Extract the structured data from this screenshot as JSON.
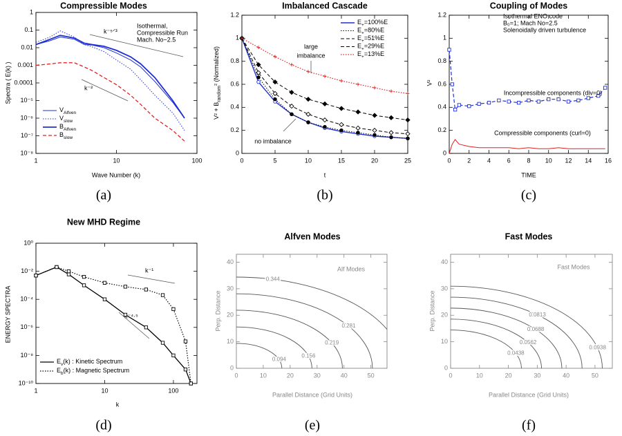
{
  "chart_data": [
    {
      "type": "line",
      "title": "Compressible Modes",
      "panel_label": "(a)",
      "xlabel": "Wave Number (k)",
      "ylabel": "Spectra ( E(k) )",
      "xlog": true,
      "ylog": true,
      "xlim": [
        1,
        100
      ],
      "ylim": [
        1e-08,
        1
      ],
      "xticks": [
        1,
        10,
        100
      ],
      "yticks": [
        1,
        0.1,
        0.01,
        0.001,
        0.0001,
        {
          "value": 1e-05,
          "label": "10⁻⁵"
        },
        {
          "value": 1e-06,
          "label": "10⁻⁶"
        },
        {
          "value": 1e-07,
          "label": "10⁻⁷"
        },
        {
          "value": 1e-08,
          "label": "10⁻⁸"
        }
      ],
      "annotations": [
        "Isothermal,",
        "Compressible Run",
        "Mach. No~2.5",
        "k⁻⁵ᐟ³",
        "k⁻²"
      ],
      "x": [
        1,
        1.5,
        2,
        3,
        4,
        5,
        7,
        10,
        15,
        20,
        30,
        50,
        70
      ],
      "series": [
        {
          "name": "V",
          "subscript": "Alfven",
          "color": "#1f2fd0",
          "dash": "solid",
          "width": 1,
          "values": [
            0.015,
            0.025,
            0.04,
            0.03,
            0.015,
            0.014,
            0.01,
            0.005,
            0.002,
            0.0008,
            0.00012,
            8e-06,
            1e-06
          ]
        },
        {
          "name": "V",
          "subscript": "slow",
          "color": "#1f2fd0",
          "dash": "dotted",
          "width": 1,
          "values": [
            0.02,
            0.04,
            0.09,
            0.04,
            0.015,
            0.011,
            0.006,
            0.002,
            0.0006,
            0.00015,
            2e-05,
            2e-06,
            2e-07
          ]
        },
        {
          "name": "B",
          "subscript": "Alfven",
          "color": "#1f2fd0",
          "dash": "solid",
          "width": 1.8,
          "values": [
            0.015,
            0.03,
            0.05,
            0.035,
            0.018,
            0.015,
            0.012,
            0.007,
            0.003,
            0.0012,
            0.0002,
            1e-05,
            1e-06
          ]
        },
        {
          "name": "B",
          "subscript": "slow",
          "color": "#e02020",
          "dash": "dashed",
          "width": 1.3,
          "values": [
            0.001,
            0.0012,
            0.0014,
            0.0014,
            0.0008,
            0.0005,
            0.0002,
            8e-05,
            2e-05,
            6e-06,
            1e-06,
            2e-07,
            5e-08
          ]
        }
      ]
    },
    {
      "type": "line",
      "title": "Imbalanced Cascade",
      "panel_label": "(b)",
      "xlabel": "t",
      "ylabel": [
        "V² + B",
        "random",
        "² (Normalized)"
      ],
      "xlim": [
        0,
        25
      ],
      "ylim": [
        0,
        1.2
      ],
      "xticks": [
        0,
        5,
        10,
        15,
        20,
        25
      ],
      "yticks": [
        0,
        0.2,
        0.4,
        0.6,
        0.8,
        1,
        1.2
      ],
      "annotations": [
        "large",
        "imbalance",
        "no imbalance"
      ],
      "x": [
        0,
        2.5,
        5,
        7.5,
        10,
        12.5,
        15,
        17.5,
        20,
        22.5,
        25
      ],
      "series": [
        {
          "name": "E",
          "subscript": "+",
          "suffix": "=100%E",
          "color": "#1f2fd0",
          "dash": "solid",
          "width": 1.4,
          "marker": "circle-open",
          "values": [
            1,
            0.62,
            0.45,
            0.34,
            0.27,
            0.22,
            0.19,
            0.17,
            0.15,
            0.14,
            0.13
          ]
        },
        {
          "name": "E",
          "subscript": "+",
          "suffix": "=80%E",
          "color": "#000000",
          "dash": "dotted",
          "width": 1,
          "marker": "circle",
          "values": [
            1,
            0.66,
            0.47,
            0.34,
            0.27,
            0.23,
            0.2,
            0.18,
            0.16,
            0.14,
            0.13
          ]
        },
        {
          "name": "E",
          "subscript": "+",
          "suffix": "=51%E",
          "color": "#000000",
          "dash": "dashed",
          "width": 1,
          "marker": "diamond-open",
          "values": [
            1,
            0.7,
            0.52,
            0.41,
            0.34,
            0.29,
            0.25,
            0.22,
            0.2,
            0.18,
            0.17
          ]
        },
        {
          "name": "E",
          "subscript": "+",
          "suffix": "=29%E",
          "color": "#000000",
          "dash": "dashed",
          "width": 1,
          "marker": "diamond",
          "values": [
            1,
            0.77,
            0.62,
            0.53,
            0.47,
            0.43,
            0.39,
            0.36,
            0.33,
            0.31,
            0.29
          ]
        },
        {
          "name": "E",
          "subscript": "+",
          "suffix": "=13%E",
          "color": "#e02020",
          "dash": "dotted",
          "width": 1.2,
          "marker": "plus",
          "values": [
            1,
            0.92,
            0.84,
            0.77,
            0.71,
            0.67,
            0.63,
            0.6,
            0.57,
            0.54,
            0.52
          ]
        }
      ]
    },
    {
      "type": "line",
      "title": "Coupling of Modes",
      "panel_label": "(c)",
      "xlabel": "TIME",
      "ylabel": "V²",
      "xlim": [
        0,
        16
      ],
      "ylim": [
        0,
        1.2
      ],
      "xticks": [
        0,
        2,
        4,
        6,
        8,
        10,
        12,
        14,
        16
      ],
      "yticks": [
        0,
        0.2,
        0.4,
        0.6,
        0.8,
        1,
        1.2
      ],
      "annotations": [
        "Isothermal ENO code",
        "B₀=1;  Mach No=2.5",
        "Solenoidally driven turbulence"
      ],
      "x": [
        0,
        0.3,
        0.6,
        1,
        2,
        3,
        4,
        5,
        6,
        7,
        8,
        9,
        10,
        11,
        12,
        13,
        14,
        15,
        15.7
      ],
      "series": [
        {
          "name": "Incompressible components (div=0)",
          "color": "#1f2fd0",
          "dash": "dashed",
          "width": 1.2,
          "marker": "square-open",
          "values": [
            0.9,
            0.6,
            0.38,
            0.42,
            0.41,
            0.43,
            0.44,
            0.46,
            0.45,
            0.44,
            0.46,
            0.45,
            0.47,
            0.47,
            0.45,
            0.46,
            0.48,
            0.5,
            0.57
          ]
        },
        {
          "name": "Compressible components (curl=0)",
          "color": "#e02020",
          "dash": "solid",
          "width": 1,
          "values": [
            0,
            0.08,
            0.12,
            0.08,
            0.06,
            0.05,
            0.05,
            0.05,
            0.05,
            0.04,
            0.05,
            0.04,
            0.04,
            0.05,
            0.04,
            0.04,
            0.04,
            0.04,
            0.04
          ]
        }
      ]
    },
    {
      "type": "line",
      "title": "New MHD Regime",
      "panel_label": "(d)",
      "xlabel": "k",
      "ylabel": "ENERGY SPECTRA",
      "xlog": true,
      "ylog": true,
      "xlim": [
        1,
        220
      ],
      "ylim": [
        1e-10,
        1
      ],
      "xticks": [
        1,
        10,
        100
      ],
      "yticks": [
        {
          "value": 1,
          "label": "10⁰"
        },
        {
          "value": 0.01,
          "label": "10⁻²"
        },
        {
          "value": 0.0001,
          "label": "10⁻⁴"
        },
        {
          "value": 1e-06,
          "label": "10⁻⁶"
        },
        {
          "value": 1e-08,
          "label": "10⁻⁸"
        },
        {
          "value": 1e-10,
          "label": "10⁻¹⁰"
        }
      ],
      "annotations": [
        "k⁻¹",
        "k⁻⁴·⁵"
      ],
      "x": [
        1,
        2,
        3,
        5,
        10,
        20,
        40,
        70,
        100,
        150,
        180
      ],
      "series": [
        {
          "name": "E",
          "subscript": "v",
          "suffix": "(k) : Kinetic Spectrum",
          "color": "#000000",
          "dash": "solid",
          "width": 1.3,
          "marker": "square-open",
          "values": [
            0.005,
            0.02,
            0.006,
            0.001,
            0.0001,
            8e-06,
            1e-06,
            8e-08,
            1e-08,
            1e-09,
            1e-10
          ]
        },
        {
          "name": "E",
          "subscript": "b",
          "suffix": "(k) : Magnetic Spectrum",
          "color": "#000000",
          "dash": "dotted",
          "width": 1.2,
          "marker": "square-open",
          "values": [
            0.005,
            0.02,
            0.01,
            0.004,
            0.0015,
            0.0008,
            0.0005,
            0.0002,
            2e-05,
            1e-07,
            1e-10
          ]
        }
      ]
    },
    {
      "type": "contour",
      "title": "Alfven Modes",
      "panel_label": "(e)",
      "xlabel": "Parallel Distance (Grid Units)",
      "ylabel": "Perp. Distance",
      "xlim": [
        0,
        56
      ],
      "ylim": [
        0,
        43
      ],
      "xticks": [
        0,
        10,
        20,
        30,
        40,
        50
      ],
      "yticks": [
        0,
        10,
        20,
        30,
        40
      ],
      "annotations": [
        "Alf Modes"
      ],
      "color": "#555555",
      "levels": [
        0.094,
        0.156,
        0.219,
        0.281,
        0.344
      ]
    },
    {
      "type": "contour",
      "title": "Fast Modes",
      "panel_label": "(f)",
      "xlabel": "Parallel Distance (Grid Units)",
      "ylabel": "Perp. Distance",
      "xlim": [
        0,
        56
      ],
      "ylim": [
        0,
        43
      ],
      "xticks": [
        0,
        10,
        20,
        30,
        40,
        50
      ],
      "yticks": [
        0,
        10,
        20,
        30,
        40
      ],
      "annotations": [
        "Fast Modes"
      ],
      "color": "#555555",
      "levels": [
        0.0438,
        0.0562,
        0.0688,
        0.0813,
        0.0938
      ]
    }
  ]
}
